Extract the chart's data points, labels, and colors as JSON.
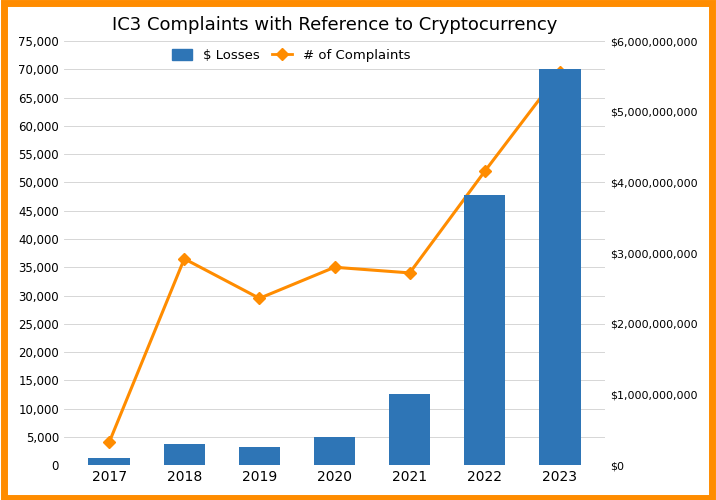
{
  "title": "IC3 Complaints with Reference to Cryptocurrency",
  "years": [
    2017,
    2018,
    2019,
    2020,
    2021,
    2022,
    2023
  ],
  "complaints": [
    4000,
    36500,
    29500,
    35000,
    34000,
    52000,
    69500
  ],
  "losses": [
    96000000,
    300000000,
    250000000,
    400000000,
    1000000000,
    3820000000,
    5600000000
  ],
  "left_ylim": [
    0,
    75000
  ],
  "left_yticks": [
    0,
    5000,
    10000,
    15000,
    20000,
    25000,
    30000,
    35000,
    40000,
    45000,
    50000,
    55000,
    60000,
    65000,
    70000,
    75000
  ],
  "right_ylim": [
    0,
    6000000000
  ],
  "right_yticks": [
    0,
    1000000000,
    2000000000,
    3000000000,
    4000000000,
    5000000000,
    6000000000
  ],
  "bar_color": "#2E75B6",
  "line_color": "#FF8C00",
  "border_color": "#FF8C00",
  "legend_labels": [
    "$ Losses",
    "# of Complaints"
  ],
  "background_color": "#FFFFFF",
  "grid_color": "#D0D0D0",
  "bar_width": 0.55
}
